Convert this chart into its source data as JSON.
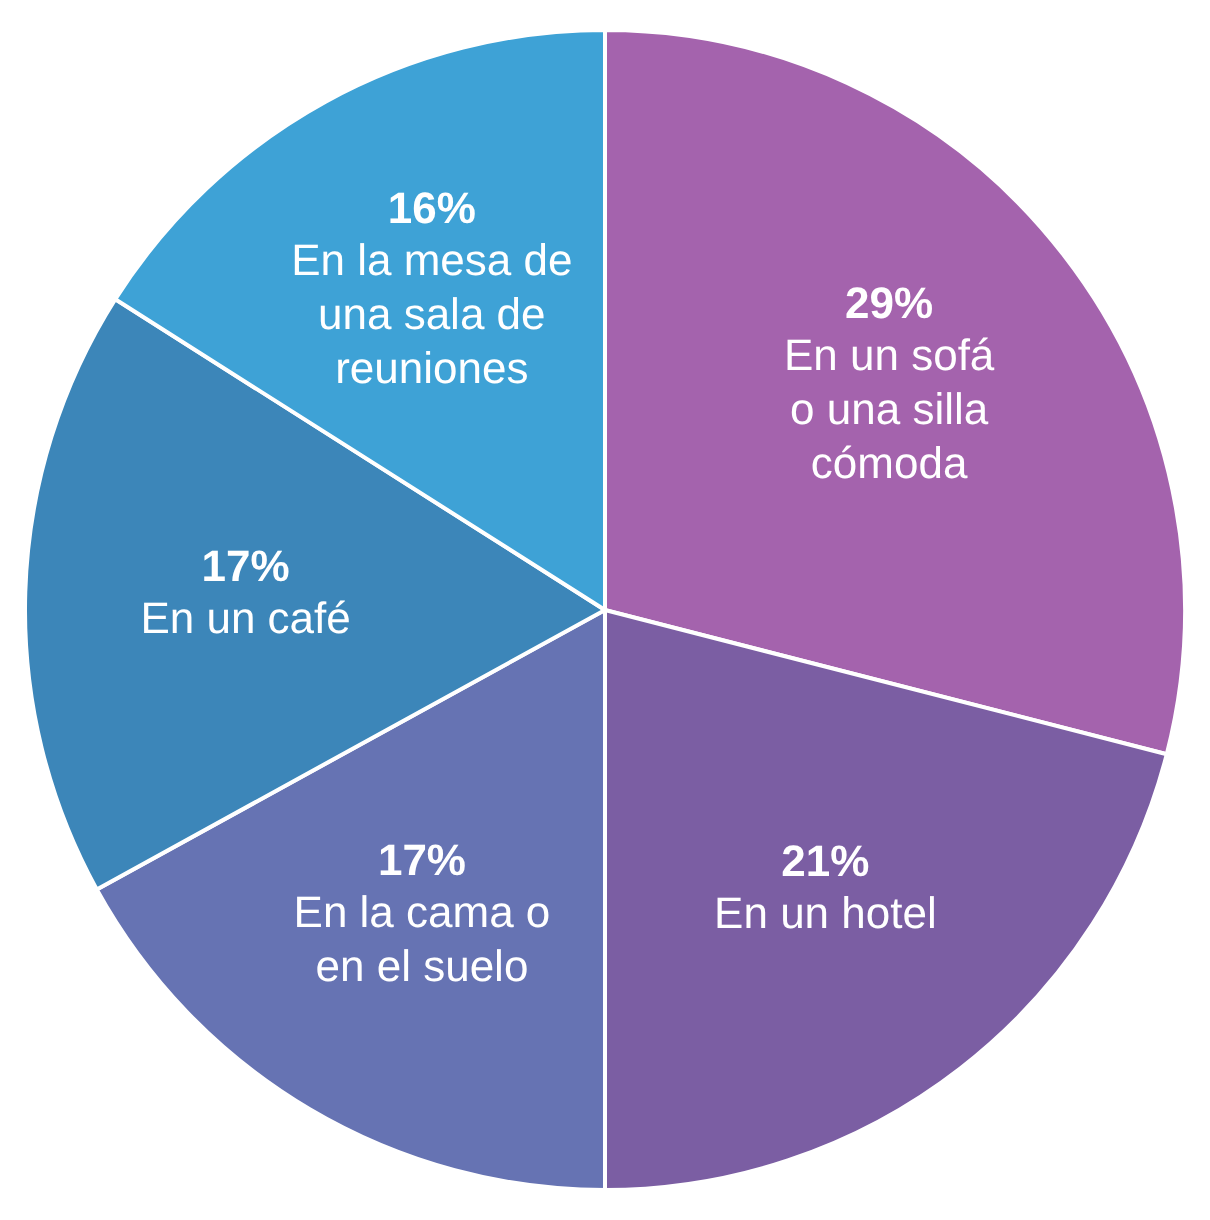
{
  "chart_data": {
    "type": "pie",
    "categories": [
      "En un sofá\no una silla\ncómoda",
      "En un hotel",
      "En la cama o\nen el suelo",
      "En un café",
      "En la mesa de\nuna sala de\nreuniones"
    ],
    "values": [
      29,
      21,
      17,
      17,
      16
    ],
    "value_labels": [
      "29%",
      "21%",
      "17%",
      "17%",
      "16%"
    ],
    "colors": [
      "#a463ad",
      "#7b5ea3",
      "#6673b3",
      "#3c86b9",
      "#3ea2d6"
    ]
  }
}
